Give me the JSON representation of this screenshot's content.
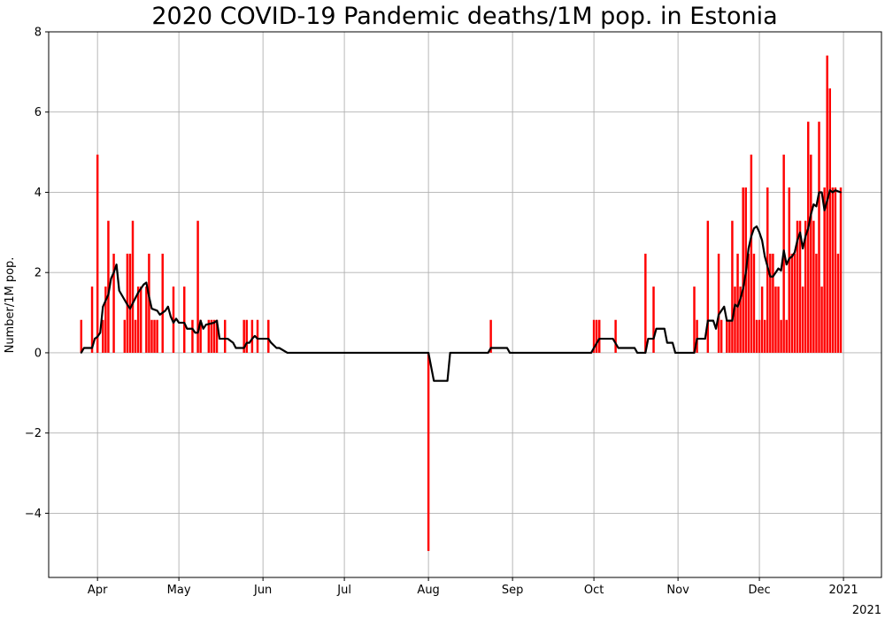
{
  "chart_data": {
    "type": "bar",
    "title": "2020 COVID-19 Pandemic deaths/1M pop. in Estonia",
    "xlabel": "",
    "ylabel": "Number/1M pop.",
    "offset_label": "2021",
    "grid": true,
    "xlim": [
      "2020-03-14",
      "2021-01-15"
    ],
    "ylim": [
      -5.6,
      8.0
    ],
    "y_ticks": [
      -4,
      -2,
      0,
      2,
      4,
      6,
      8
    ],
    "x_ticks": [
      {
        "date": "2020-04-01",
        "label": "Apr"
      },
      {
        "date": "2020-05-01",
        "label": "May"
      },
      {
        "date": "2020-06-01",
        "label": "Jun"
      },
      {
        "date": "2020-07-01",
        "label": "Jul"
      },
      {
        "date": "2020-08-01",
        "label": "Aug"
      },
      {
        "date": "2020-09-01",
        "label": "Sep"
      },
      {
        "date": "2020-10-01",
        "label": "Oct"
      },
      {
        "date": "2020-11-01",
        "label": "Nov"
      },
      {
        "date": "2020-12-01",
        "label": "Dec"
      },
      {
        "date": "2021-01-01",
        "label": "2021"
      }
    ],
    "colors": {
      "bars": "#ff0000",
      "line": "#000000"
    },
    "series": [
      {
        "type": "bar",
        "points": [
          [
            "2020-03-26",
            0.82
          ],
          [
            "2020-03-30",
            1.65
          ],
          [
            "2020-04-01",
            4.94
          ],
          [
            "2020-04-03",
            0.82
          ],
          [
            "2020-04-04",
            1.65
          ],
          [
            "2020-04-05",
            3.29
          ],
          [
            "2020-04-07",
            2.47
          ],
          [
            "2020-04-11",
            0.82
          ],
          [
            "2020-04-12",
            2.47
          ],
          [
            "2020-04-13",
            2.47
          ],
          [
            "2020-04-14",
            3.29
          ],
          [
            "2020-04-15",
            0.82
          ],
          [
            "2020-04-16",
            1.65
          ],
          [
            "2020-04-17",
            1.65
          ],
          [
            "2020-04-19",
            1.65
          ],
          [
            "2020-04-20",
            2.47
          ],
          [
            "2020-04-21",
            0.82
          ],
          [
            "2020-04-22",
            0.82
          ],
          [
            "2020-04-23",
            0.82
          ],
          [
            "2020-04-25",
            2.47
          ],
          [
            "2020-04-29",
            1.65
          ],
          [
            "2020-05-03",
            1.65
          ],
          [
            "2020-05-06",
            0.82
          ],
          [
            "2020-05-08",
            3.29
          ],
          [
            "2020-05-09",
            0.82
          ],
          [
            "2020-05-12",
            0.82
          ],
          [
            "2020-05-13",
            0.82
          ],
          [
            "2020-05-14",
            0.82
          ],
          [
            "2020-05-15",
            0.82
          ],
          [
            "2020-05-18",
            0.82
          ],
          [
            "2020-05-25",
            0.82
          ],
          [
            "2020-05-26",
            0.82
          ],
          [
            "2020-05-28",
            0.82
          ],
          [
            "2020-05-30",
            0.82
          ],
          [
            "2020-06-03",
            0.82
          ],
          [
            "2020-08-01",
            -4.94
          ],
          [
            "2020-08-24",
            0.82
          ],
          [
            "2020-10-01",
            0.82
          ],
          [
            "2020-10-02",
            0.82
          ],
          [
            "2020-10-03",
            0.82
          ],
          [
            "2020-10-09",
            0.82
          ],
          [
            "2020-10-20",
            2.47
          ],
          [
            "2020-10-23",
            1.65
          ],
          [
            "2020-11-07",
            1.65
          ],
          [
            "2020-11-08",
            0.82
          ],
          [
            "2020-11-12",
            3.29
          ],
          [
            "2020-11-16",
            2.47
          ],
          [
            "2020-11-17",
            0.82
          ],
          [
            "2020-11-19",
            0.82
          ],
          [
            "2020-11-20",
            0.82
          ],
          [
            "2020-11-21",
            3.29
          ],
          [
            "2020-11-22",
            1.65
          ],
          [
            "2020-11-23",
            2.47
          ],
          [
            "2020-11-24",
            1.65
          ],
          [
            "2020-11-25",
            4.12
          ],
          [
            "2020-11-26",
            4.12
          ],
          [
            "2020-11-27",
            2.47
          ],
          [
            "2020-11-28",
            4.94
          ],
          [
            "2020-11-29",
            2.47
          ],
          [
            "2020-11-30",
            0.82
          ],
          [
            "2020-12-01",
            0.82
          ],
          [
            "2020-12-02",
            1.65
          ],
          [
            "2020-12-03",
            0.82
          ],
          [
            "2020-12-04",
            4.12
          ],
          [
            "2020-12-05",
            2.47
          ],
          [
            "2020-12-06",
            2.47
          ],
          [
            "2020-12-07",
            1.65
          ],
          [
            "2020-12-08",
            1.65
          ],
          [
            "2020-12-09",
            0.82
          ],
          [
            "2020-12-10",
            4.94
          ],
          [
            "2020-12-11",
            0.82
          ],
          [
            "2020-12-12",
            4.12
          ],
          [
            "2020-12-13",
            2.47
          ],
          [
            "2020-12-14",
            2.47
          ],
          [
            "2020-12-15",
            3.29
          ],
          [
            "2020-12-16",
            3.29
          ],
          [
            "2020-12-17",
            1.65
          ],
          [
            "2020-12-18",
            3.29
          ],
          [
            "2020-12-19",
            5.76
          ],
          [
            "2020-12-20",
            4.94
          ],
          [
            "2020-12-21",
            3.29
          ],
          [
            "2020-12-22",
            2.47
          ],
          [
            "2020-12-23",
            5.76
          ],
          [
            "2020-12-24",
            1.65
          ],
          [
            "2020-12-25",
            4.12
          ],
          [
            "2020-12-26",
            7.41
          ],
          [
            "2020-12-27",
            6.59
          ],
          [
            "2020-12-28",
            4.12
          ],
          [
            "2020-12-29",
            4.12
          ],
          [
            "2020-12-30",
            2.47
          ],
          [
            "2020-12-31",
            4.12
          ]
        ]
      },
      {
        "type": "line",
        "points": [
          [
            "2020-03-26",
            0.0
          ],
          [
            "2020-03-27",
            0.12
          ],
          [
            "2020-03-30",
            0.12
          ],
          [
            "2020-03-31",
            0.35
          ],
          [
            "2020-04-01",
            0.4
          ],
          [
            "2020-04-02",
            0.5
          ],
          [
            "2020-04-03",
            1.15
          ],
          [
            "2020-04-04",
            1.3
          ],
          [
            "2020-04-05",
            1.45
          ],
          [
            "2020-04-06",
            1.85
          ],
          [
            "2020-04-07",
            2.0
          ],
          [
            "2020-04-08",
            2.2
          ],
          [
            "2020-04-09",
            1.55
          ],
          [
            "2020-04-12",
            1.2
          ],
          [
            "2020-04-13",
            1.1
          ],
          [
            "2020-04-16",
            1.5
          ],
          [
            "2020-04-18",
            1.7
          ],
          [
            "2020-04-19",
            1.75
          ],
          [
            "2020-04-20",
            1.4
          ],
          [
            "2020-04-21",
            1.1
          ],
          [
            "2020-04-23",
            1.05
          ],
          [
            "2020-04-24",
            0.95
          ],
          [
            "2020-04-26",
            1.05
          ],
          [
            "2020-04-27",
            1.15
          ],
          [
            "2020-04-28",
            0.9
          ],
          [
            "2020-04-29",
            0.75
          ],
          [
            "2020-04-30",
            0.85
          ],
          [
            "2020-05-01",
            0.75
          ],
          [
            "2020-05-03",
            0.75
          ],
          [
            "2020-05-04",
            0.6
          ],
          [
            "2020-05-06",
            0.6
          ],
          [
            "2020-05-07",
            0.5
          ],
          [
            "2020-05-08",
            0.5
          ],
          [
            "2020-05-09",
            0.8
          ],
          [
            "2020-05-10",
            0.6
          ],
          [
            "2020-05-11",
            0.7
          ],
          [
            "2020-05-14",
            0.75
          ],
          [
            "2020-05-15",
            0.8
          ],
          [
            "2020-05-16",
            0.35
          ],
          [
            "2020-05-19",
            0.35
          ],
          [
            "2020-05-21",
            0.25
          ],
          [
            "2020-05-22",
            0.12
          ],
          [
            "2020-05-25",
            0.12
          ],
          [
            "2020-05-26",
            0.25
          ],
          [
            "2020-05-27",
            0.25
          ],
          [
            "2020-05-28",
            0.35
          ],
          [
            "2020-05-29",
            0.42
          ],
          [
            "2020-05-30",
            0.35
          ],
          [
            "2020-06-03",
            0.35
          ],
          [
            "2020-06-04",
            0.25
          ],
          [
            "2020-06-06",
            0.12
          ],
          [
            "2020-06-07",
            0.12
          ],
          [
            "2020-06-10",
            0.0
          ],
          [
            "2020-08-01",
            0.0
          ],
          [
            "2020-08-03",
            -0.7
          ],
          [
            "2020-08-08",
            -0.7
          ],
          [
            "2020-08-09",
            0.0
          ],
          [
            "2020-08-23",
            0.0
          ],
          [
            "2020-08-24",
            0.12
          ],
          [
            "2020-08-30",
            0.12
          ],
          [
            "2020-08-31",
            0.0
          ],
          [
            "2020-09-30",
            0.0
          ],
          [
            "2020-10-01",
            0.12
          ],
          [
            "2020-10-03",
            0.35
          ],
          [
            "2020-10-08",
            0.35
          ],
          [
            "2020-10-10",
            0.12
          ],
          [
            "2020-10-16",
            0.12
          ],
          [
            "2020-10-17",
            0.0
          ],
          [
            "2020-10-20",
            0.0
          ],
          [
            "2020-10-21",
            0.35
          ],
          [
            "2020-10-23",
            0.35
          ],
          [
            "2020-10-24",
            0.6
          ],
          [
            "2020-10-27",
            0.6
          ],
          [
            "2020-10-28",
            0.25
          ],
          [
            "2020-10-30",
            0.25
          ],
          [
            "2020-10-31",
            0.0
          ],
          [
            "2020-11-07",
            0.0
          ],
          [
            "2020-11-08",
            0.35
          ],
          [
            "2020-11-11",
            0.35
          ],
          [
            "2020-11-12",
            0.8
          ],
          [
            "2020-11-14",
            0.8
          ],
          [
            "2020-11-15",
            0.6
          ],
          [
            "2020-11-16",
            0.95
          ],
          [
            "2020-11-18",
            1.15
          ],
          [
            "2020-11-19",
            0.8
          ],
          [
            "2020-11-21",
            0.8
          ],
          [
            "2020-11-22",
            1.2
          ],
          [
            "2020-11-23",
            1.15
          ],
          [
            "2020-11-24",
            1.35
          ],
          [
            "2020-11-25",
            1.6
          ],
          [
            "2020-11-26",
            2.0
          ],
          [
            "2020-11-27",
            2.6
          ],
          [
            "2020-11-28",
            2.9
          ],
          [
            "2020-11-29",
            3.1
          ],
          [
            "2020-11-30",
            3.15
          ],
          [
            "2020-12-01",
            3.0
          ],
          [
            "2020-12-02",
            2.8
          ],
          [
            "2020-12-03",
            2.4
          ],
          [
            "2020-12-04",
            2.15
          ],
          [
            "2020-12-05",
            1.9
          ],
          [
            "2020-12-06",
            1.9
          ],
          [
            "2020-12-07",
            2.0
          ],
          [
            "2020-12-08",
            2.1
          ],
          [
            "2020-12-09",
            2.05
          ],
          [
            "2020-12-10",
            2.55
          ],
          [
            "2020-12-11",
            2.2
          ],
          [
            "2020-12-12",
            2.35
          ],
          [
            "2020-12-13",
            2.4
          ],
          [
            "2020-12-14",
            2.5
          ],
          [
            "2020-12-15",
            2.8
          ],
          [
            "2020-12-16",
            3.0
          ],
          [
            "2020-12-17",
            2.6
          ],
          [
            "2020-12-18",
            2.9
          ],
          [
            "2020-12-19",
            3.1
          ],
          [
            "2020-12-20",
            3.45
          ],
          [
            "2020-12-21",
            3.7
          ],
          [
            "2020-12-22",
            3.65
          ],
          [
            "2020-12-23",
            4.0
          ],
          [
            "2020-12-24",
            4.0
          ],
          [
            "2020-12-25",
            3.55
          ],
          [
            "2020-12-26",
            3.8
          ],
          [
            "2020-12-27",
            4.05
          ],
          [
            "2020-12-28",
            4.0
          ],
          [
            "2020-12-29",
            4.05
          ],
          [
            "2020-12-31",
            4.0
          ]
        ]
      }
    ]
  }
}
